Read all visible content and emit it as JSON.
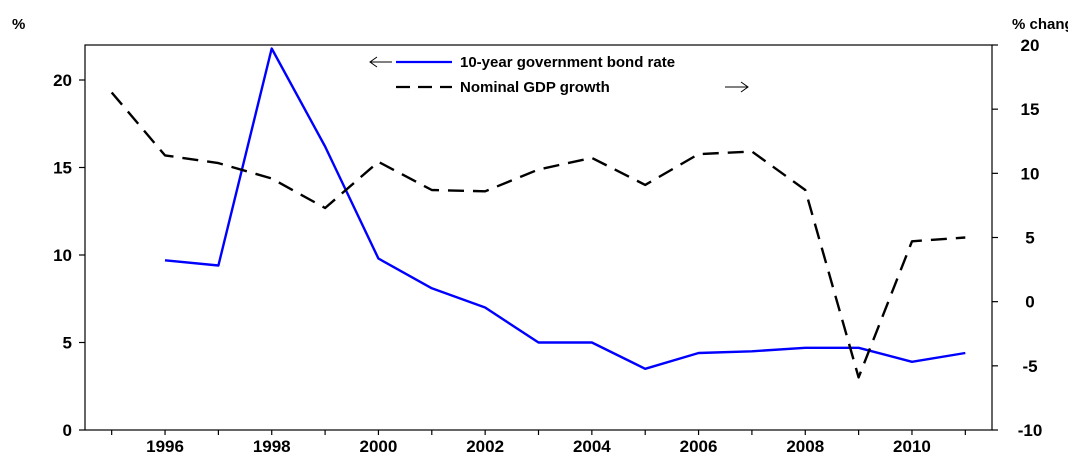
{
  "chart_data": {
    "type": "line",
    "left_axis_unit": "%",
    "right_axis_unit": "% change",
    "x_ticks": [
      1996,
      1998,
      2000,
      2002,
      2004,
      2006,
      2008,
      2010
    ],
    "xlim": [
      1994.5,
      2011.5
    ],
    "left_ylim": [
      0,
      22
    ],
    "left_yticks": [
      0,
      5,
      10,
      15,
      20
    ],
    "right_ylim": [
      -10,
      20
    ],
    "right_yticks": [
      -10,
      -5,
      0,
      5,
      10,
      15,
      20
    ],
    "grid": false,
    "legend_position": "top-center",
    "series": [
      {
        "name": "10-year government bond rate",
        "axis": "left",
        "color": "#0000ff",
        "style": "solid",
        "arrow": "left",
        "x": [
          1996,
          1997,
          1998,
          1999,
          2000,
          2001,
          2002,
          2003,
          2004,
          2005,
          2006,
          2007,
          2008,
          2009,
          2010,
          2011
        ],
        "y": [
          9.7,
          9.4,
          21.8,
          16.2,
          9.8,
          8.1,
          7.0,
          5.0,
          5.0,
          3.5,
          4.4,
          4.5,
          4.7,
          4.7,
          3.9,
          4.4
        ]
      },
      {
        "name": "Nominal GDP growth",
        "axis": "right",
        "color": "#000000",
        "style": "dashed",
        "arrow": "right",
        "x": [
          1995,
          1996,
          1997,
          1998,
          1999,
          2000,
          2001,
          2002,
          2003,
          2004,
          2005,
          2006,
          2007,
          2008,
          2009,
          2010,
          2011
        ],
        "y": [
          16.3,
          11.4,
          10.8,
          9.6,
          7.3,
          10.9,
          8.7,
          8.6,
          10.3,
          11.2,
          9.1,
          11.5,
          11.7,
          8.7,
          -5.9,
          4.7,
          5.0
        ]
      }
    ]
  }
}
